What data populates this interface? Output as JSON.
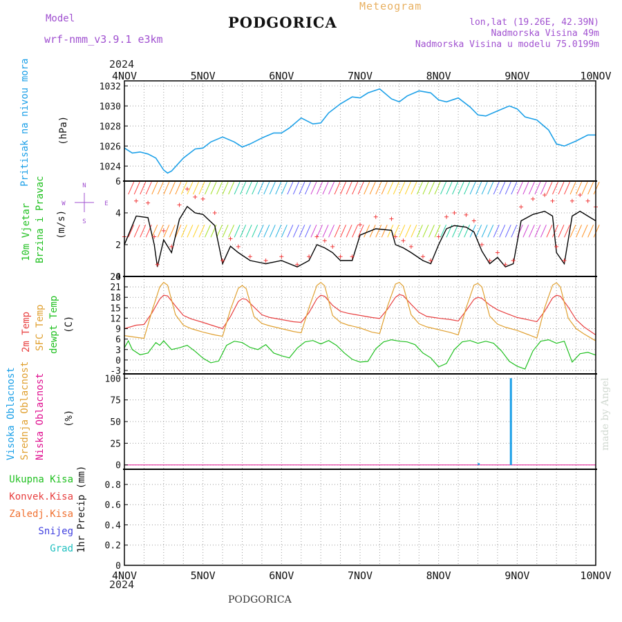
{
  "header": {
    "title": "PODGORICA",
    "bottom_title": "PODGORICA",
    "model_label": "Model",
    "model_name": "wrf-nmm_v3.9.1  e3km",
    "meteogram_label": "Meteogram",
    "lonlat": "lon,lat (19.26E, 42.39N)",
    "elevation": "Nadmorska Visina 49m",
    "elevation_model": "Nadmorska Visina u modelu 75.0199m",
    "year": "2024",
    "credit": "made by Angel"
  },
  "time_axis": {
    "ticks": [
      "4NOV",
      "5NOV",
      "6NOV",
      "7NOV",
      "8NOV",
      "9NOV",
      "10NOV"
    ],
    "range_days": [
      0,
      6
    ]
  },
  "panels": {
    "pressure": {
      "labels": [
        "Pritisak na nivou mora",
        "(hPa)"
      ],
      "yticks": [
        "1024",
        "1026",
        "1028",
        "1030",
        "1032"
      ],
      "ylim": [
        1022.5,
        1032.5
      ]
    },
    "wind": {
      "labels": [
        "10m Vjetar",
        "Brzina i Pravac",
        "(m/s)"
      ],
      "compass": [
        "N",
        "W",
        "E",
        "S"
      ],
      "yticks": [
        "0",
        "2",
        "4",
        "6"
      ],
      "ylim": [
        0,
        6
      ]
    },
    "temperature": {
      "labels": [
        "2m Temp",
        "SFC Temp",
        "dewpt Temp",
        "(C)"
      ],
      "yticks": [
        "-3",
        "0",
        "3",
        "6",
        "9",
        "12",
        "15",
        "18",
        "21",
        "24"
      ],
      "ylim": [
        -4,
        24
      ]
    },
    "cloud": {
      "labels": [
        "Visoka Oblacnost",
        "Srednja Oblacnost",
        "Niska Oblacnost",
        "(%)"
      ],
      "yticks": [
        "0",
        "25",
        "50",
        "75",
        "100"
      ],
      "ylim": [
        -5,
        105
      ]
    },
    "precip": {
      "labels": [
        "Ukupna Kisa",
        "Konvek.Kisa",
        "Zaledj.Kisa",
        "Snijeg",
        "Grad",
        "1hr Precip (mm)"
      ],
      "yticks": [
        "0",
        "0.2",
        "0.4",
        "0.6",
        "0.8"
      ],
      "ylim": [
        0,
        0.95
      ]
    }
  },
  "colors": {
    "pressure": "#1ca0e8",
    "wind_speed": "#000000",
    "wind_gust": "#f03a3a",
    "temp_2m": "#e84040",
    "temp_sfc": "#e0a030",
    "temp_dew": "#20c020",
    "cloud_high": "#1ca0e8",
    "cloud_mid": "#e0a030",
    "cloud_low": "#e01090",
    "precip_total": "#20c020",
    "precip_conv": "#e84040",
    "precip_freezing": "#f07030",
    "precip_snow": "#4040e0",
    "precip_hail": "#20c0c0",
    "compass": "#a050d0"
  },
  "chart_data": [
    {
      "type": "line",
      "name": "pressure",
      "x": [
        0,
        0.1,
        0.2,
        0.3,
        0.4,
        0.5,
        0.55,
        0.6,
        0.75,
        0.9,
        1.0,
        1.1,
        1.25,
        1.4,
        1.5,
        1.6,
        1.75,
        1.9,
        2.0,
        2.1,
        2.25,
        2.4,
        2.5,
        2.6,
        2.75,
        2.9,
        3.0,
        3.1,
        3.25,
        3.4,
        3.5,
        3.6,
        3.75,
        3.9,
        4.0,
        4.1,
        4.25,
        4.4,
        4.5,
        4.6,
        4.75,
        4.9,
        5.0,
        5.1,
        5.25,
        5.4,
        5.5,
        5.6,
        5.75,
        5.9,
        6.0
      ],
      "y": [
        1025.8,
        1025.3,
        1025.4,
        1025.2,
        1024.8,
        1023.6,
        1023.3,
        1023.5,
        1024.8,
        1025.7,
        1025.8,
        1026.4,
        1026.9,
        1026.4,
        1025.9,
        1026.2,
        1026.8,
        1027.3,
        1027.3,
        1027.8,
        1028.8,
        1028.2,
        1028.3,
        1029.3,
        1030.2,
        1030.9,
        1030.8,
        1031.3,
        1031.7,
        1030.7,
        1030.4,
        1031.0,
        1031.5,
        1031.3,
        1030.6,
        1030.4,
        1030.8,
        1029.9,
        1029.1,
        1029.0,
        1029.5,
        1030.0,
        1029.7,
        1028.9,
        1028.6,
        1027.6,
        1026.2,
        1026.0,
        1026.5,
        1027.1,
        1027.1
      ],
      "ylabel": "(hPa)"
    },
    {
      "type": "line",
      "name": "wind",
      "x": [
        0,
        0.15,
        0.3,
        0.38,
        0.42,
        0.5,
        0.6,
        0.7,
        0.8,
        0.9,
        1.0,
        1.15,
        1.25,
        1.35,
        1.45,
        1.6,
        1.8,
        2.0,
        2.2,
        2.35,
        2.45,
        2.55,
        2.65,
        2.75,
        2.9,
        3.0,
        3.2,
        3.4,
        3.45,
        3.55,
        3.65,
        3.8,
        3.9,
        4.0,
        4.1,
        4.2,
        4.35,
        4.45,
        4.55,
        4.65,
        4.75,
        4.85,
        4.95,
        5.05,
        5.2,
        5.35,
        5.45,
        5.5,
        5.6,
        5.7,
        5.8,
        5.9,
        6.0
      ],
      "y": [
        2.0,
        3.8,
        3.7,
        2.0,
        0.6,
        2.3,
        1.5,
        3.6,
        4.4,
        4.0,
        3.9,
        3.2,
        0.8,
        1.9,
        1.5,
        1.0,
        0.8,
        1.0,
        0.6,
        1.0,
        2.0,
        1.8,
        1.5,
        1.0,
        1.0,
        2.6,
        3.0,
        2.9,
        2.0,
        1.8,
        1.5,
        1.0,
        0.8,
        2.0,
        3.0,
        3.2,
        3.1,
        2.8,
        1.6,
        0.8,
        1.2,
        0.6,
        0.8,
        3.5,
        3.9,
        4.1,
        3.8,
        1.5,
        0.8,
        3.8,
        4.1,
        3.8,
        3.5
      ],
      "ylabel": "(m/s)"
    },
    {
      "type": "line",
      "name": "temperature",
      "series": [
        {
          "name": "2m Temp",
          "x": [
            0,
            0.15,
            0.25,
            0.35,
            0.45,
            0.5,
            0.55,
            0.65,
            0.75,
            0.85,
            1.0,
            1.15,
            1.25,
            1.35,
            1.45,
            1.5,
            1.55,
            1.65,
            1.75,
            1.85,
            2.0,
            2.15,
            2.25,
            2.35,
            2.45,
            2.5,
            2.55,
            2.65,
            2.75,
            2.85,
            3.0,
            3.15,
            3.25,
            3.35,
            3.45,
            3.5,
            3.55,
            3.65,
            3.75,
            3.85,
            4.0,
            4.15,
            4.25,
            4.35,
            4.45,
            4.5,
            4.55,
            4.65,
            4.75,
            4.85,
            5.0,
            5.15,
            5.25,
            5.35,
            5.45,
            5.5,
            5.55,
            5.65,
            5.75,
            5.85,
            6.0
          ],
          "values": [
            9.0,
            10.0,
            10.2,
            13.5,
            17.5,
            18.6,
            18.4,
            15.5,
            12.8,
            11.8,
            10.8,
            9.7,
            9.0,
            12.5,
            16.8,
            17.6,
            17.4,
            15.2,
            13.0,
            12.2,
            11.6,
            11.0,
            10.8,
            13.6,
            17.6,
            18.6,
            18.3,
            15.7,
            14.0,
            13.4,
            12.8,
            12.2,
            11.9,
            14.6,
            18.0,
            18.8,
            18.5,
            16.0,
            13.7,
            12.5,
            12.0,
            11.6,
            11.2,
            14.2,
            17.4,
            18.0,
            17.7,
            15.8,
            14.4,
            13.5,
            12.2,
            11.5,
            11.0,
            14.0,
            17.8,
            18.6,
            18.3,
            15.2,
            11.6,
            9.5,
            7.2
          ]
        },
        {
          "name": "SFC Temp",
          "x": [
            0,
            0.15,
            0.25,
            0.35,
            0.45,
            0.5,
            0.55,
            0.65,
            0.75,
            0.85,
            1.0,
            1.15,
            1.25,
            1.35,
            1.45,
            1.5,
            1.55,
            1.65,
            1.75,
            1.85,
            2.0,
            2.15,
            2.25,
            2.35,
            2.45,
            2.5,
            2.55,
            2.65,
            2.75,
            2.85,
            3.0,
            3.15,
            3.25,
            3.35,
            3.45,
            3.5,
            3.55,
            3.65,
            3.75,
            3.85,
            4.0,
            4.15,
            4.25,
            4.35,
            4.45,
            4.5,
            4.55,
            4.65,
            4.75,
            4.85,
            5.0,
            5.15,
            5.25,
            5.35,
            5.45,
            5.5,
            5.55,
            5.65,
            5.75,
            5.85,
            6.0
          ],
          "values": [
            7.0,
            6.5,
            6.2,
            14.0,
            21.0,
            22.3,
            21.5,
            13.0,
            10.0,
            9.0,
            8.0,
            7.2,
            6.8,
            14.5,
            20.6,
            21.4,
            20.5,
            12.5,
            10.5,
            9.8,
            9.0,
            8.2,
            7.8,
            15.0,
            21.4,
            22.3,
            21.3,
            12.8,
            10.8,
            10.0,
            9.2,
            8.0,
            7.6,
            15.5,
            21.8,
            22.3,
            21.2,
            13.0,
            10.4,
            9.5,
            8.7,
            7.9,
            7.2,
            15.0,
            21.5,
            22.0,
            21.0,
            12.6,
            10.3,
            9.4,
            8.5,
            7.2,
            6.3,
            15.0,
            21.5,
            22.2,
            21.0,
            12.0,
            9.0,
            7.5,
            5.5
          ]
        },
        {
          "name": "dewpt Temp",
          "x": [
            0,
            0.05,
            0.1,
            0.2,
            0.3,
            0.4,
            0.45,
            0.5,
            0.6,
            0.7,
            0.8,
            0.9,
            1.0,
            1.1,
            1.2,
            1.3,
            1.4,
            1.5,
            1.6,
            1.7,
            1.8,
            1.9,
            2.0,
            2.1,
            2.2,
            2.3,
            2.4,
            2.5,
            2.6,
            2.7,
            2.8,
            2.9,
            3.0,
            3.1,
            3.2,
            3.3,
            3.4,
            3.5,
            3.6,
            3.7,
            3.8,
            3.9,
            4.0,
            4.1,
            4.2,
            4.3,
            4.4,
            4.5,
            4.6,
            4.7,
            4.8,
            4.9,
            5.0,
            5.1,
            5.2,
            5.3,
            5.4,
            5.5,
            5.6,
            5.7,
            5.8,
            5.9,
            6.0
          ],
          "values": [
            3.5,
            5.5,
            3.0,
            1.5,
            2.0,
            5.0,
            4.2,
            5.5,
            3.0,
            3.5,
            4.2,
            2.5,
            0.5,
            -0.8,
            -0.3,
            4.2,
            5.4,
            5.0,
            3.6,
            3.0,
            4.4,
            2.0,
            1.2,
            0.6,
            3.4,
            5.2,
            5.6,
            4.6,
            5.6,
            4.2,
            2.0,
            0.2,
            -0.6,
            -0.4,
            3.2,
            5.2,
            5.8,
            5.4,
            5.2,
            4.4,
            2.0,
            0.6,
            -2.0,
            -1.0,
            3.0,
            5.2,
            5.6,
            4.8,
            5.4,
            4.8,
            2.6,
            -0.4,
            -1.8,
            -2.6,
            2.6,
            5.4,
            5.8,
            4.8,
            5.4,
            -0.6,
            1.8,
            2.2,
            1.4
          ]
        }
      ],
      "ylabel": "(C)"
    },
    {
      "type": "bar",
      "name": "cloud",
      "series": [
        {
          "name": "Visoka Oblacnost",
          "x": [
            4.51,
            4.92
          ],
          "values": [
            2,
            100
          ]
        },
        {
          "name": "Srednja Oblacnost",
          "x": [],
          "values": []
        },
        {
          "name": "Niska Oblacnost",
          "x": [],
          "values": []
        }
      ],
      "ylabel": "(%)"
    },
    {
      "type": "bar",
      "name": "precip",
      "series": [
        {
          "name": "Ukupna Kisa",
          "values": []
        },
        {
          "name": "Konvek.Kisa",
          "values": []
        },
        {
          "name": "Zaledj.Kisa",
          "values": []
        },
        {
          "name": "Snijeg",
          "values": []
        },
        {
          "name": "Grad",
          "values": []
        }
      ],
      "ylabel": "1hr Precip (mm)"
    }
  ]
}
